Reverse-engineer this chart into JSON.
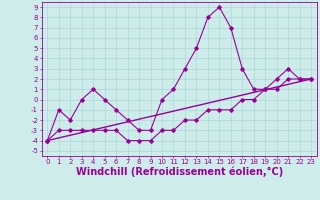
{
  "xlabel": "Windchill (Refroidissement éolien,°C)",
  "background_color": "#ceecea",
  "line_color": "#990099",
  "xlim": [
    -0.5,
    23.5
  ],
  "ylim": [
    -5.5,
    9.5
  ],
  "yticks": [
    -5,
    -4,
    -3,
    -2,
    -1,
    0,
    1,
    2,
    3,
    4,
    5,
    6,
    7,
    8,
    9
  ],
  "xticks": [
    0,
    1,
    2,
    3,
    4,
    5,
    6,
    7,
    8,
    9,
    10,
    11,
    12,
    13,
    14,
    15,
    16,
    17,
    18,
    19,
    20,
    21,
    22,
    23
  ],
  "series1_x": [
    0,
    1,
    2,
    3,
    4,
    5,
    6,
    7,
    8,
    9,
    10,
    11,
    12,
    13,
    14,
    15,
    16,
    17,
    18,
    19,
    20,
    21,
    22,
    23
  ],
  "series1_y": [
    -4,
    -1,
    -2,
    0,
    1,
    0,
    -1,
    -2,
    -3,
    -3,
    0,
    1,
    3,
    5,
    8,
    9,
    7,
    3,
    1,
    1,
    2,
    3,
    2,
    2
  ],
  "series2_x": [
    0,
    1,
    2,
    3,
    4,
    5,
    6,
    7,
    8,
    9,
    10,
    11,
    12,
    13,
    14,
    15,
    16,
    17,
    18,
    19,
    20,
    21,
    22,
    23
  ],
  "series2_y": [
    -4,
    -3,
    -3,
    -3,
    -3,
    -3,
    -3,
    -4,
    -4,
    -4,
    -3,
    -3,
    -2,
    -2,
    -1,
    -1,
    -1,
    0,
    0,
    1,
    1,
    2,
    2,
    2
  ],
  "series3_x": [
    0,
    23
  ],
  "series3_y": [
    -4,
    2
  ],
  "grid_color": "#aad8d5",
  "tick_fontsize": 5.0,
  "xlabel_fontsize": 7.0
}
